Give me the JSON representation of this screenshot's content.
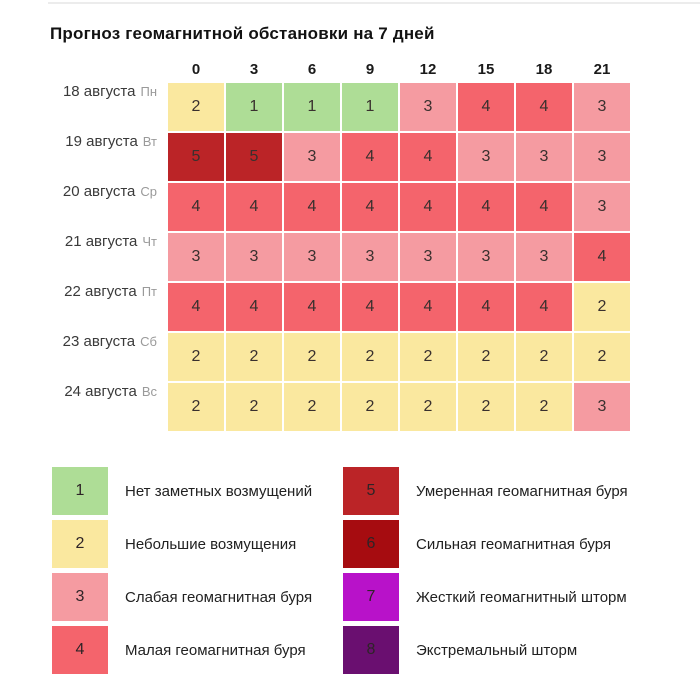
{
  "chart_data": {
    "type": "heatmap",
    "title": "Прогноз геомагнитной обстановки на 7 дней",
    "xlabel": "",
    "ylabel": "",
    "x_ticks": [
      "0",
      "3",
      "6",
      "9",
      "12",
      "15",
      "18",
      "21"
    ],
    "rows": [
      {
        "date": "18 августа",
        "weekday": "Пн",
        "values": [
          2,
          1,
          1,
          1,
          3,
          4,
          4,
          3
        ]
      },
      {
        "date": "19 августа",
        "weekday": "Вт",
        "values": [
          5,
          5,
          3,
          4,
          4,
          3,
          3,
          3
        ]
      },
      {
        "date": "20 августа",
        "weekday": "Ср",
        "values": [
          4,
          4,
          4,
          4,
          4,
          4,
          4,
          3
        ]
      },
      {
        "date": "21 августа",
        "weekday": "Чт",
        "values": [
          3,
          3,
          3,
          3,
          3,
          3,
          3,
          4
        ]
      },
      {
        "date": "22 августа",
        "weekday": "Пт",
        "values": [
          4,
          4,
          4,
          4,
          4,
          4,
          4,
          2
        ]
      },
      {
        "date": "23 августа",
        "weekday": "Сб",
        "values": [
          2,
          2,
          2,
          2,
          2,
          2,
          2,
          2
        ]
      },
      {
        "date": "24 августа",
        "weekday": "Вс",
        "values": [
          2,
          2,
          2,
          2,
          2,
          2,
          2,
          3
        ]
      }
    ],
    "levels": [
      {
        "value": 1,
        "label": "Нет заметных возмущений",
        "color": "#aedd96"
      },
      {
        "value": 2,
        "label": "Небольшие возмущения",
        "color": "#fae89f"
      },
      {
        "value": 3,
        "label": "Слабая геомагнитная буря",
        "color": "#f59ba1"
      },
      {
        "value": 4,
        "label": "Малая геомагнитная буря",
        "color": "#f4646c"
      },
      {
        "value": 5,
        "label": "Умеренная геомагнитная буря",
        "color": "#bb2427"
      },
      {
        "value": 6,
        "label": "Сильная геомагнитная буря",
        "color": "#a60c10"
      },
      {
        "value": 7,
        "label": "Жесткий геомагнитный шторм",
        "color": "#b812c9"
      },
      {
        "value": 8,
        "label": "Экстремальный шторм",
        "color": "#6a0f70"
      }
    ],
    "legend_position": "bottom",
    "grid": false
  }
}
